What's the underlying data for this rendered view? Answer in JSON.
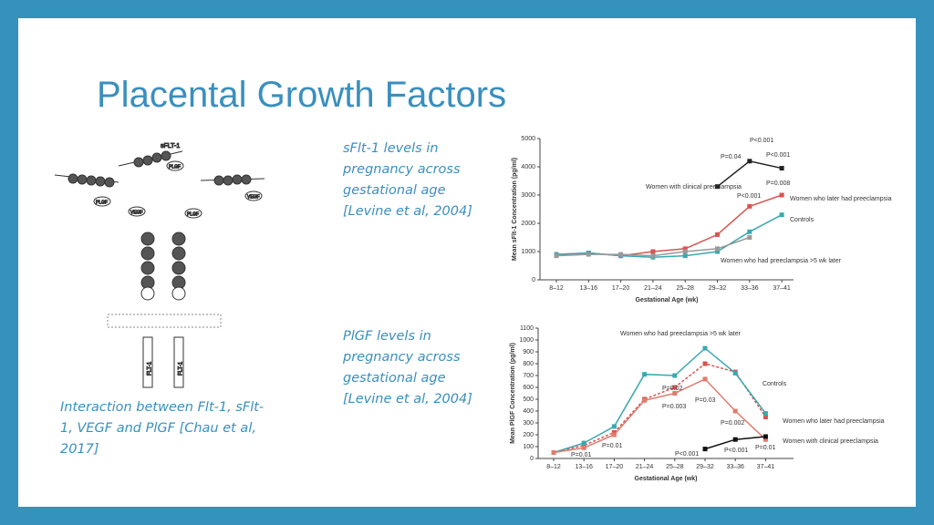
{
  "slide": {
    "title": "Placental Growth Factors",
    "captions": [
      "sFlt-1 levels in pregnancy across gestational age [Levine et al, 2004]",
      "PlGF levels in pregnancy across gestational age [Levine et al, 2004]",
      "Interaction between Flt-1, sFlt-1, VEGF and PlGF [Chau et al, 2017]"
    ],
    "diagram": {
      "labels": [
        "sFLT-1",
        "PLGF",
        "VEGF",
        "FLT-1"
      ]
    }
  },
  "chart_data": [
    {
      "type": "line",
      "xlabel": "Gestational Age (wk)",
      "ylabel": "Mean sFlt-1 Concentration (pg/ml)",
      "categories": [
        "8–12",
        "13–16",
        "17–20",
        "21–24",
        "25–28",
        "29–32",
        "33–36",
        "37–41"
      ],
      "ylim": [
        0,
        5000
      ],
      "yticks": [
        0,
        1000,
        2000,
        3000,
        4000,
        5000
      ],
      "series": [
        {
          "name": "Women with clinical preeclampsia",
          "color": "#222222",
          "values": [
            null,
            null,
            null,
            null,
            null,
            3300,
            4200,
            3950
          ]
        },
        {
          "name": "Women who later had preeclampsia",
          "color": "#d9534f",
          "values": [
            900,
            950,
            850,
            1000,
            1100,
            1600,
            2600,
            3000
          ]
        },
        {
          "name": "Controls",
          "color": "#3aa8b0",
          "values": [
            900,
            950,
            850,
            800,
            850,
            1000,
            1700,
            2300
          ]
        },
        {
          "name": "Women who had preeclampsia >5 wk later",
          "color": "#999999",
          "values": [
            850,
            900,
            900,
            850,
            1000,
            1100,
            1500,
            null
          ]
        }
      ],
      "annotations": [
        "P<0.001",
        "P=0.04",
        "P<0.001",
        "P=0.008",
        "P<0.001"
      ]
    },
    {
      "type": "line",
      "xlabel": "Gestational Age (wk)",
      "ylabel": "Mean PlGF Concentration (pg/ml)",
      "categories": [
        "8–12",
        "13–16",
        "17–20",
        "21–24",
        "25–28",
        "29–32",
        "33–36",
        "37–41"
      ],
      "ylim": [
        0,
        1100
      ],
      "yticks": [
        0,
        100,
        200,
        300,
        400,
        500,
        600,
        700,
        800,
        900,
        1000,
        1100
      ],
      "series": [
        {
          "name": "Women who had preeclampsia >5 wk later",
          "color": "#d9534f",
          "dashed": true,
          "values": [
            50,
            110,
            220,
            500,
            600,
            800,
            730,
            350
          ]
        },
        {
          "name": "Controls",
          "color": "#3aa8b0",
          "values": [
            50,
            130,
            270,
            710,
            700,
            930,
            720,
            380
          ]
        },
        {
          "name": "Women who later had preeclampsia",
          "color": "#e07b6e",
          "values": [
            50,
            90,
            200,
            490,
            550,
            670,
            400,
            160
          ]
        },
        {
          "name": "Women with clinical preeclampsia",
          "color": "#111111",
          "values": [
            null,
            null,
            null,
            null,
            null,
            80,
            160,
            185
          ]
        }
      ],
      "annotations": [
        "P=0.01",
        "P=0.01",
        "P=0.02",
        "P=0.003",
        "P=0.03",
        "P=0.002",
        "P<0.001",
        "P<0.001",
        "P=0.01"
      ]
    }
  ]
}
